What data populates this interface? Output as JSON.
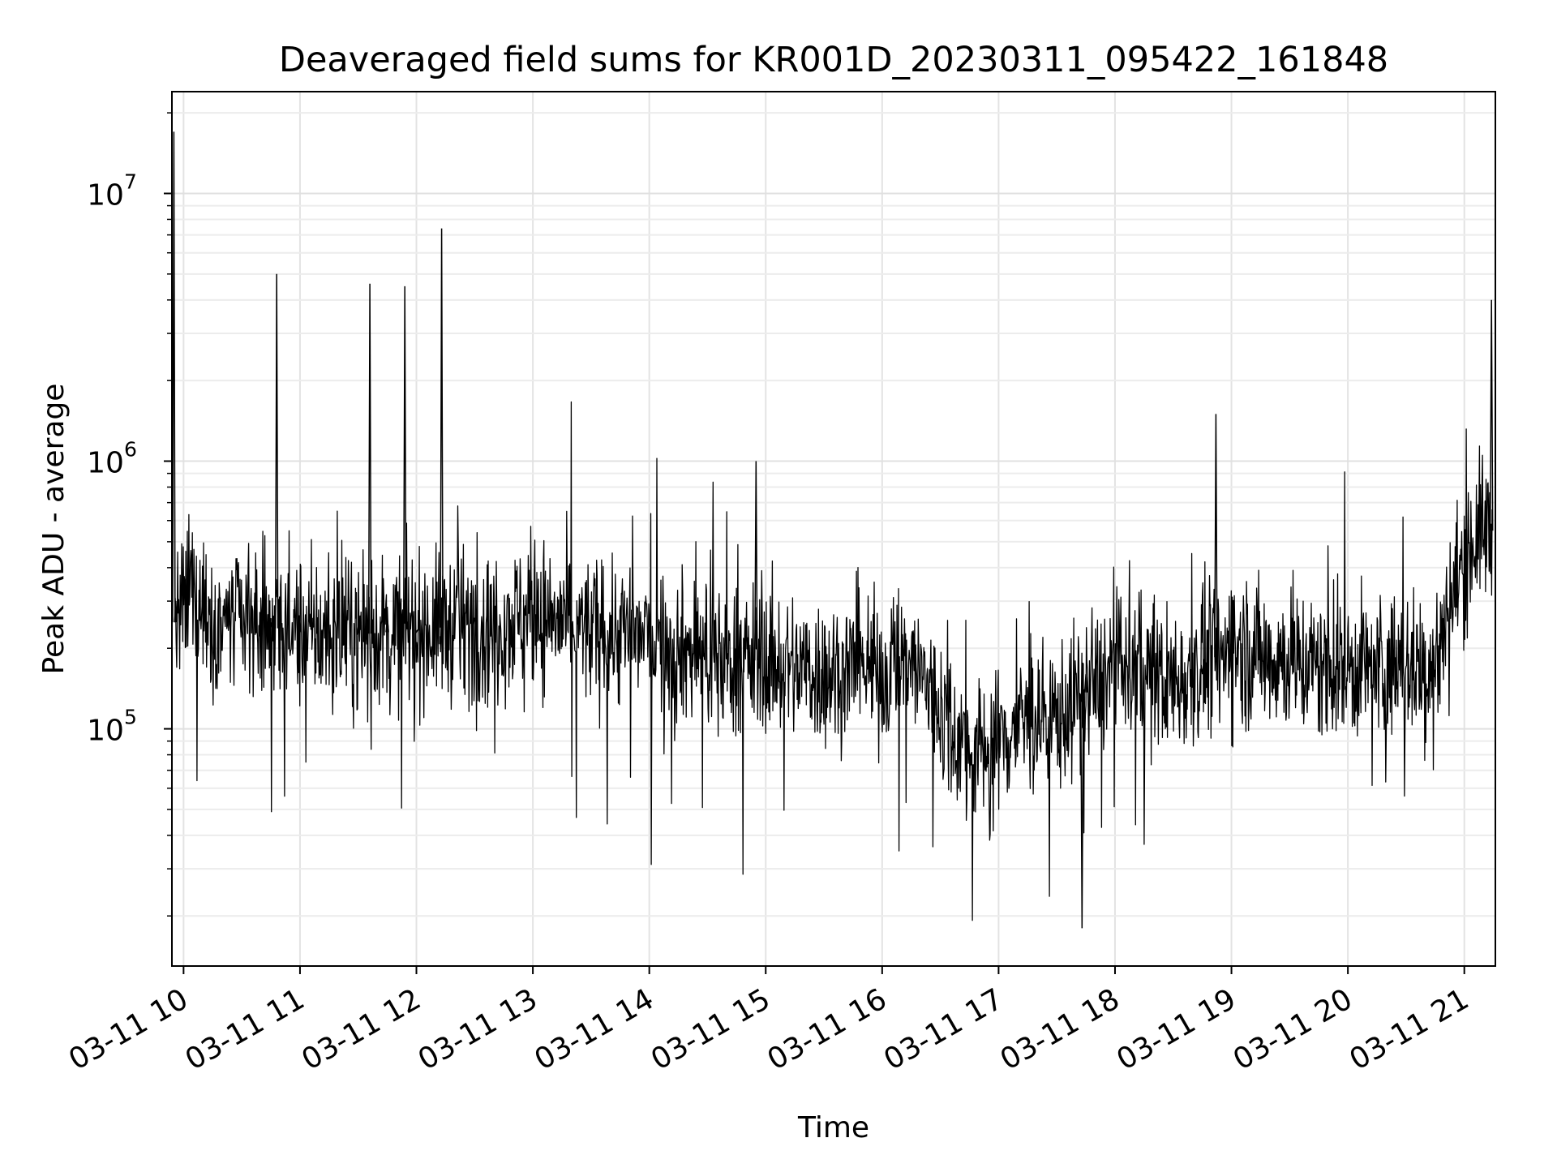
{
  "chart_data": {
    "type": "line",
    "title": "Deaveraged field sums for KR001D_20230311_095422_161848",
    "xlabel": "Time",
    "ylabel": "Peak ADU - average",
    "xlim": [
      "2023-03-11 09:54",
      "2023-03-11 21:16"
    ],
    "ylim": [
      13000,
      24000000
    ],
    "yscale": "log",
    "grid": true,
    "x_ticks": [
      {
        "label": "03-11 10",
        "value": "2023-03-11 10:00"
      },
      {
        "label": "03-11 11",
        "value": "2023-03-11 11:00"
      },
      {
        "label": "03-11 12",
        "value": "2023-03-11 12:00"
      },
      {
        "label": "03-11 13",
        "value": "2023-03-11 13:00"
      },
      {
        "label": "03-11 14",
        "value": "2023-03-11 14:00"
      },
      {
        "label": "03-11 15",
        "value": "2023-03-11 15:00"
      },
      {
        "label": "03-11 16",
        "value": "2023-03-11 16:00"
      },
      {
        "label": "03-11 17",
        "value": "2023-03-11 17:00"
      },
      {
        "label": "03-11 18",
        "value": "2023-03-11 18:00"
      },
      {
        "label": "03-11 19",
        "value": "2023-03-11 19:00"
      },
      {
        "label": "03-11 20",
        "value": "2023-03-11 20:00"
      },
      {
        "label": "03-11 21",
        "value": "2023-03-11 21:00"
      }
    ],
    "y_ticks": [
      {
        "base": "10",
        "exp": "5",
        "value": 100000
      },
      {
        "base": "10",
        "exp": "6",
        "value": 1000000
      },
      {
        "base": "10",
        "exp": "7",
        "value": 10000000
      }
    ],
    "series": [
      {
        "color": "#000000",
        "x": [
          "2023-03-11 09:55",
          "2023-03-11 09:56",
          "2023-03-11 09:58",
          "2023-03-11 10:05",
          "2023-03-11 10:15",
          "2023-03-11 10:30",
          "2023-03-11 10:45",
          "2023-03-11 10:48",
          "2023-03-11 11:00",
          "2023-03-11 11:15",
          "2023-03-11 11:30",
          "2023-03-11 11:36",
          "2023-03-11 11:45",
          "2023-03-11 11:54",
          "2023-03-11 12:00",
          "2023-03-11 12:13",
          "2023-03-11 12:30",
          "2023-03-11 12:45",
          "2023-03-11 13:00",
          "2023-03-11 13:15",
          "2023-03-11 13:30",
          "2023-03-11 13:45",
          "2023-03-11 14:00",
          "2023-03-11 14:15",
          "2023-03-11 14:30",
          "2023-03-11 14:45",
          "2023-03-11 14:55",
          "2023-03-11 15:00",
          "2023-03-11 15:15",
          "2023-03-11 15:30",
          "2023-03-11 15:45",
          "2023-03-11 16:00",
          "2023-03-11 16:15",
          "2023-03-11 16:30",
          "2023-03-11 16:45",
          "2023-03-11 17:00",
          "2023-03-11 17:15",
          "2023-03-11 17:30",
          "2023-03-11 17:43",
          "2023-03-11 17:45",
          "2023-03-11 18:00",
          "2023-03-11 18:15",
          "2023-03-11 18:30",
          "2023-03-11 18:45",
          "2023-03-11 18:52",
          "2023-03-11 19:00",
          "2023-03-11 19:15",
          "2023-03-11 19:30",
          "2023-03-11 19:45",
          "2023-03-11 20:00",
          "2023-03-11 20:15",
          "2023-03-11 20:30",
          "2023-03-11 20:45",
          "2023-03-11 21:00",
          "2023-03-11 21:08",
          "2023-03-11 21:14"
        ],
        "y": [
          17000000,
          300000,
          250000,
          350000,
          250000,
          250000,
          250000,
          5000000,
          250000,
          220000,
          240000,
          4600000,
          260000,
          4500000,
          230000,
          7400000,
          260000,
          250000,
          270000,
          250000,
          230000,
          230000,
          220000,
          200000,
          190000,
          180000,
          1000000,
          180000,
          170000,
          160000,
          170000,
          160000,
          180000,
          120000,
          80000,
          90000,
          110000,
          110000,
          18000,
          160000,
          170000,
          160000,
          150000,
          160000,
          1500000,
          200000,
          190000,
          180000,
          170000,
          170000,
          170000,
          170000,
          170000,
          450000,
          550000,
          4000000
        ]
      }
    ]
  }
}
